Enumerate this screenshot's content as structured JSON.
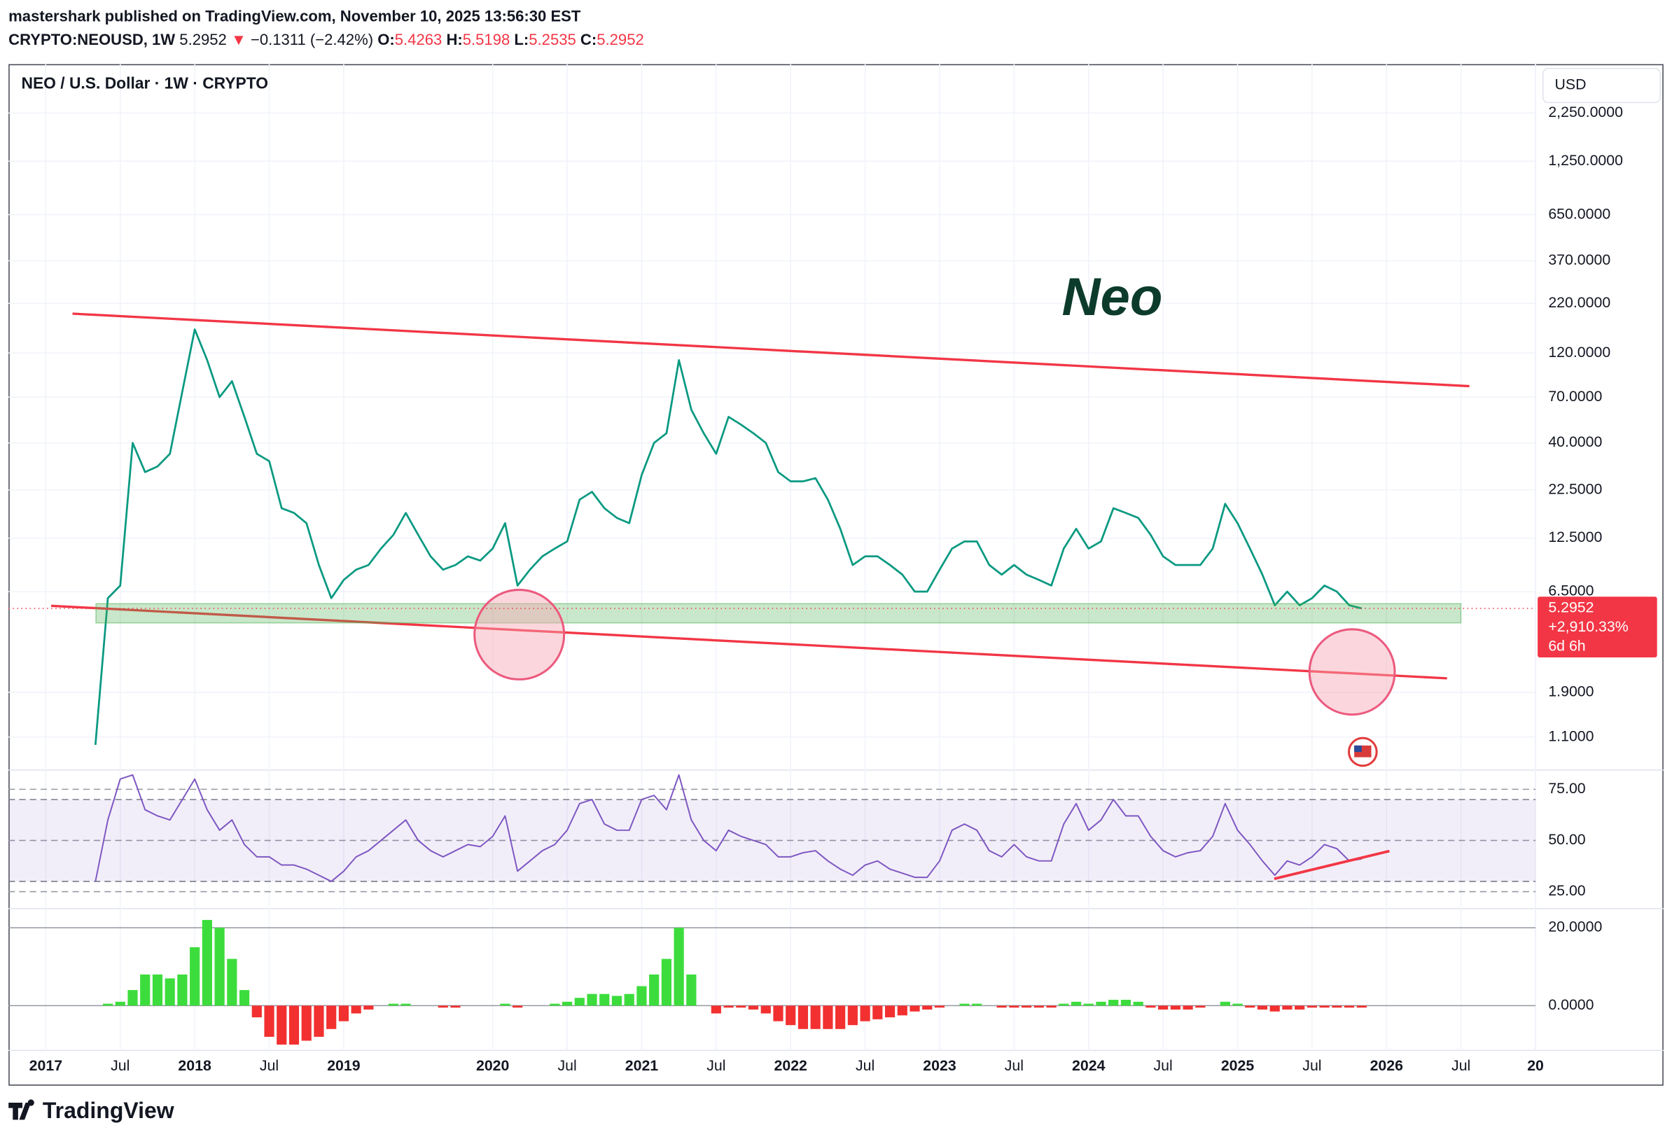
{
  "header": {
    "byline": "mastershark published on TradingView.com, November 10, 2025 13:56:30 EST",
    "symbol": "CRYPTO:NEOUSD, 1W",
    "price": "5.2952",
    "arrow": "▼",
    "change": "−0.1311 (−2.42%)",
    "open_key": "O:",
    "open": "5.4263",
    "high_key": "H:",
    "high": "5.5198",
    "low_key": "L:",
    "low": "5.2535",
    "close_key": "C:",
    "close": "5.2952"
  },
  "footer": {
    "brand": "TradingView"
  },
  "chart_data": [
    {
      "type": "line",
      "legend": "NEO / U.S. Dollar · 1W · CRYPTO",
      "currency": "USD",
      "annotation": "Neo",
      "log_scale": true,
      "color": "#089981",
      "last_price": 5.2952,
      "last_change_label": "+2,910.33%",
      "countdown": "6d 6h",
      "last_color": "#f23645",
      "xlim": [
        "2016-10",
        "2027-01"
      ],
      "x": [
        "2017-05",
        "2017-06",
        "2017-07",
        "2017-08",
        "2017-09",
        "2017-10",
        "2017-11",
        "2017-12",
        "2018-01",
        "2018-02",
        "2018-03",
        "2018-04",
        "2018-05",
        "2018-06",
        "2018-07",
        "2018-08",
        "2018-09",
        "2018-10",
        "2018-11",
        "2018-12",
        "2019-01",
        "2019-02",
        "2019-03",
        "2019-04",
        "2019-05",
        "2019-06",
        "2019-07",
        "2019-08",
        "2019-09",
        "2019-10",
        "2019-11",
        "2019-12",
        "2020-01",
        "2020-02",
        "2020-03",
        "2020-04",
        "2020-05",
        "2020-06",
        "2020-07",
        "2020-08",
        "2020-09",
        "2020-10",
        "2020-11",
        "2020-12",
        "2021-01",
        "2021-02",
        "2021-03",
        "2021-04",
        "2021-05",
        "2021-06",
        "2021-07",
        "2021-08",
        "2021-09",
        "2021-10",
        "2021-11",
        "2021-12",
        "2022-01",
        "2022-02",
        "2022-03",
        "2022-04",
        "2022-05",
        "2022-06",
        "2022-07",
        "2022-08",
        "2022-09",
        "2022-10",
        "2022-11",
        "2022-12",
        "2023-01",
        "2023-02",
        "2023-03",
        "2023-04",
        "2023-05",
        "2023-06",
        "2023-07",
        "2023-08",
        "2023-09",
        "2023-10",
        "2023-11",
        "2023-12",
        "2024-01",
        "2024-02",
        "2024-03",
        "2024-04",
        "2024-05",
        "2024-06",
        "2024-07",
        "2024-08",
        "2024-09",
        "2024-10",
        "2024-11",
        "2024-12",
        "2025-01",
        "2025-02",
        "2025-03",
        "2025-04",
        "2025-05",
        "2025-06",
        "2025-07",
        "2025-08",
        "2025-09",
        "2025-10",
        "2025-11"
      ],
      "values": [
        1.0,
        6,
        7,
        40,
        28,
        30,
        35,
        75,
        160,
        110,
        70,
        85,
        55,
        35,
        32,
        18,
        17,
        15,
        9,
        6,
        7.5,
        8.5,
        9,
        11,
        13,
        17,
        13,
        10,
        8.5,
        9,
        10,
        9.5,
        11,
        15,
        7,
        8.5,
        10,
        11,
        12,
        20,
        22,
        18,
        16,
        15,
        27,
        40,
        45,
        110,
        60,
        45,
        35,
        55,
        50,
        45,
        40,
        28,
        25,
        25,
        26,
        20,
        14,
        9,
        10,
        10,
        9,
        8,
        6.5,
        6.5,
        8.5,
        11,
        12,
        12,
        9,
        8,
        9,
        8,
        7.5,
        7,
        11,
        14,
        11,
        12,
        18,
        17,
        16,
        13,
        10,
        9,
        9,
        9,
        11,
        19,
        15,
        11,
        8,
        5.5,
        6.5,
        5.5,
        6,
        7,
        6.5,
        5.5,
        5.2952
      ],
      "ylim": [
        0.735,
        4090
      ],
      "yticks": [
        {
          "value": 2250,
          "label": "2,250.0000"
        },
        {
          "value": 1250,
          "label": "1,250.0000"
        },
        {
          "value": 650,
          "label": "650.0000"
        },
        {
          "value": 370,
          "label": "370.0000"
        },
        {
          "value": 220,
          "label": "220.0000"
        },
        {
          "value": 120,
          "label": "120.0000"
        },
        {
          "value": 70,
          "label": "70.0000"
        },
        {
          "value": 40,
          "label": "40.0000"
        },
        {
          "value": 22.5,
          "label": "22.5000"
        },
        {
          "value": 12.5,
          "label": "12.5000"
        },
        {
          "value": 6.5,
          "label": "6.5000"
        },
        {
          "value": 1.9,
          "label": "1.9000"
        },
        {
          "value": 1.1,
          "label": "1.1000"
        }
      ],
      "grid": true
    },
    {
      "type": "line",
      "color": "#7e57c2",
      "band": [
        30,
        70
      ],
      "band_color": "#7e57c2",
      "xlim": [
        "2016-10",
        "2027-01"
      ],
      "x": [
        "2017-05",
        "2017-06",
        "2017-07",
        "2017-08",
        "2017-09",
        "2017-10",
        "2017-11",
        "2017-12",
        "2018-01",
        "2018-02",
        "2018-03",
        "2018-04",
        "2018-05",
        "2018-06",
        "2018-07",
        "2018-08",
        "2018-09",
        "2018-10",
        "2018-11",
        "2018-12",
        "2019-01",
        "2019-02",
        "2019-03",
        "2019-04",
        "2019-05",
        "2019-06",
        "2019-07",
        "2019-08",
        "2019-09",
        "2019-10",
        "2019-11",
        "2019-12",
        "2020-01",
        "2020-02",
        "2020-03",
        "2020-04",
        "2020-05",
        "2020-06",
        "2020-07",
        "2020-08",
        "2020-09",
        "2020-10",
        "2020-11",
        "2020-12",
        "2021-01",
        "2021-02",
        "2021-03",
        "2021-04",
        "2021-05",
        "2021-06",
        "2021-07",
        "2021-08",
        "2021-09",
        "2021-10",
        "2021-11",
        "2021-12",
        "2022-01",
        "2022-02",
        "2022-03",
        "2022-04",
        "2022-05",
        "2022-06",
        "2022-07",
        "2022-08",
        "2022-09",
        "2022-10",
        "2022-11",
        "2022-12",
        "2023-01",
        "2023-02",
        "2023-03",
        "2023-04",
        "2023-05",
        "2023-06",
        "2023-07",
        "2023-08",
        "2023-09",
        "2023-10",
        "2023-11",
        "2023-12",
        "2024-01",
        "2024-02",
        "2024-03",
        "2024-04",
        "2024-05",
        "2024-06",
        "2024-07",
        "2024-08",
        "2024-09",
        "2024-10",
        "2024-11",
        "2024-12",
        "2025-01",
        "2025-02",
        "2025-03",
        "2025-04",
        "2025-05",
        "2025-06",
        "2025-07",
        "2025-08",
        "2025-09",
        "2025-10",
        "2025-11"
      ],
      "values": [
        30,
        60,
        80,
        82,
        65,
        62,
        60,
        70,
        80,
        65,
        55,
        60,
        48,
        42,
        42,
        38,
        38,
        36,
        33,
        30,
        35,
        42,
        45,
        50,
        55,
        60,
        50,
        45,
        42,
        45,
        48,
        47,
        52,
        62,
        35,
        40,
        45,
        48,
        55,
        68,
        70,
        58,
        55,
        55,
        70,
        72,
        65,
        82,
        60,
        50,
        45,
        55,
        52,
        50,
        48,
        42,
        42,
        44,
        45,
        40,
        36,
        33,
        38,
        40,
        36,
        34,
        32,
        32,
        40,
        55,
        58,
        55,
        45,
        42,
        48,
        42,
        40,
        40,
        58,
        68,
        55,
        60,
        70,
        62,
        62,
        52,
        45,
        42,
        44,
        45,
        52,
        68,
        55,
        48,
        40,
        33,
        40,
        38,
        42,
        48,
        46,
        40,
        41
      ],
      "ylim": [
        16.7,
        84.4
      ],
      "yticks": [
        {
          "value": 75,
          "label": "75.00"
        },
        {
          "value": 50,
          "label": "50.00"
        },
        {
          "value": 25,
          "label": "25.00"
        }
      ]
    },
    {
      "type": "bar",
      "positive_color": "#3ddc3d",
      "negative_color": "#f23030",
      "xlim": [
        "2016-10",
        "2027-01"
      ],
      "x": [
        "2017-05",
        "2017-06",
        "2017-07",
        "2017-08",
        "2017-09",
        "2017-10",
        "2017-11",
        "2017-12",
        "2018-01",
        "2018-02",
        "2018-03",
        "2018-04",
        "2018-05",
        "2018-06",
        "2018-07",
        "2018-08",
        "2018-09",
        "2018-10",
        "2018-11",
        "2018-12",
        "2019-01",
        "2019-02",
        "2019-03",
        "2019-04",
        "2019-05",
        "2019-06",
        "2019-07",
        "2019-08",
        "2019-09",
        "2019-10",
        "2019-11",
        "2019-12",
        "2020-01",
        "2020-02",
        "2020-03",
        "2020-04",
        "2020-05",
        "2020-06",
        "2020-07",
        "2020-08",
        "2020-09",
        "2020-10",
        "2020-11",
        "2020-12",
        "2021-01",
        "2021-02",
        "2021-03",
        "2021-04",
        "2021-05",
        "2021-06",
        "2021-07",
        "2021-08",
        "2021-09",
        "2021-10",
        "2021-11",
        "2021-12",
        "2022-01",
        "2022-02",
        "2022-03",
        "2022-04",
        "2022-05",
        "2022-06",
        "2022-07",
        "2022-08",
        "2022-09",
        "2022-10",
        "2022-11",
        "2022-12",
        "2023-01",
        "2023-02",
        "2023-03",
        "2023-04",
        "2023-05",
        "2023-06",
        "2023-07",
        "2023-08",
        "2023-09",
        "2023-10",
        "2023-11",
        "2023-12",
        "2024-01",
        "2024-02",
        "2024-03",
        "2024-04",
        "2024-05",
        "2024-06",
        "2024-07",
        "2024-08",
        "2024-09",
        "2024-10",
        "2024-11",
        "2024-12",
        "2025-01",
        "2025-02",
        "2025-03",
        "2025-04",
        "2025-05",
        "2025-06",
        "2025-07",
        "2025-08",
        "2025-09",
        "2025-10",
        "2025-11"
      ],
      "values": [
        0,
        0.5,
        1,
        4,
        8,
        8,
        7,
        8,
        15,
        22,
        20,
        12,
        4,
        -3,
        -8,
        -10,
        -10,
        -9,
        -8,
        -6,
        -4,
        -2,
        -1,
        0,
        0.5,
        0.5,
        0,
        0,
        -0.5,
        -0.5,
        0,
        0,
        0,
        0.5,
        -0.5,
        0,
        0,
        0.5,
        1,
        2,
        3,
        3,
        2.5,
        3,
        5,
        8,
        12,
        20,
        8,
        0,
        -2,
        -0.5,
        -0.5,
        -1,
        -2,
        -4,
        -5,
        -6,
        -6,
        -6,
        -6,
        -5,
        -4,
        -3.5,
        -3,
        -2.5,
        -1.5,
        -1,
        -0.5,
        0,
        0.5,
        0.5,
        0,
        -0.5,
        -0.5,
        -0.5,
        -0.5,
        -0.5,
        0.5,
        1,
        0.5,
        1,
        1.5,
        1.5,
        1,
        -0.5,
        -1,
        -1,
        -1,
        -0.5,
        0,
        1,
        0.5,
        -0.5,
        -1,
        -1.5,
        -1,
        -1,
        -0.5,
        -0.5,
        -0.5,
        -0.5,
        -0.5
      ],
      "ylim": [
        -11.5,
        24.9
      ],
      "yticks": [
        {
          "value": 20,
          "label": "20.0000"
        },
        {
          "value": 0,
          "label": "0.0000"
        }
      ],
      "xticks": [
        {
          "value": "2017-01",
          "label": "2017"
        },
        {
          "value": "2017-07",
          "label": "Jul"
        },
        {
          "value": "2018-01",
          "label": "2018"
        },
        {
          "value": "2018-07",
          "label": "Jul"
        },
        {
          "value": "2019-01",
          "label": "2019"
        },
        {
          "value": "2020-01",
          "label": "2020"
        },
        {
          "value": "2020-07",
          "label": "Jul"
        },
        {
          "value": "2021-01",
          "label": "2021"
        },
        {
          "value": "2021-07",
          "label": "Jul"
        },
        {
          "value": "2022-01",
          "label": "2022"
        },
        {
          "value": "2022-07",
          "label": "Jul"
        },
        {
          "value": "2023-01",
          "label": "2023"
        },
        {
          "value": "2023-07",
          "label": "Jul"
        },
        {
          "value": "2024-01",
          "label": "2024"
        },
        {
          "value": "2024-07",
          "label": "Jul"
        },
        {
          "value": "2025-01",
          "label": "2025"
        },
        {
          "value": "2025-07",
          "label": "Jul"
        },
        {
          "value": "2026-01",
          "label": "2026"
        },
        {
          "value": "2026-07",
          "label": "Jul"
        },
        {
          "value": "2027-01",
          "label": "20"
        }
      ]
    }
  ]
}
